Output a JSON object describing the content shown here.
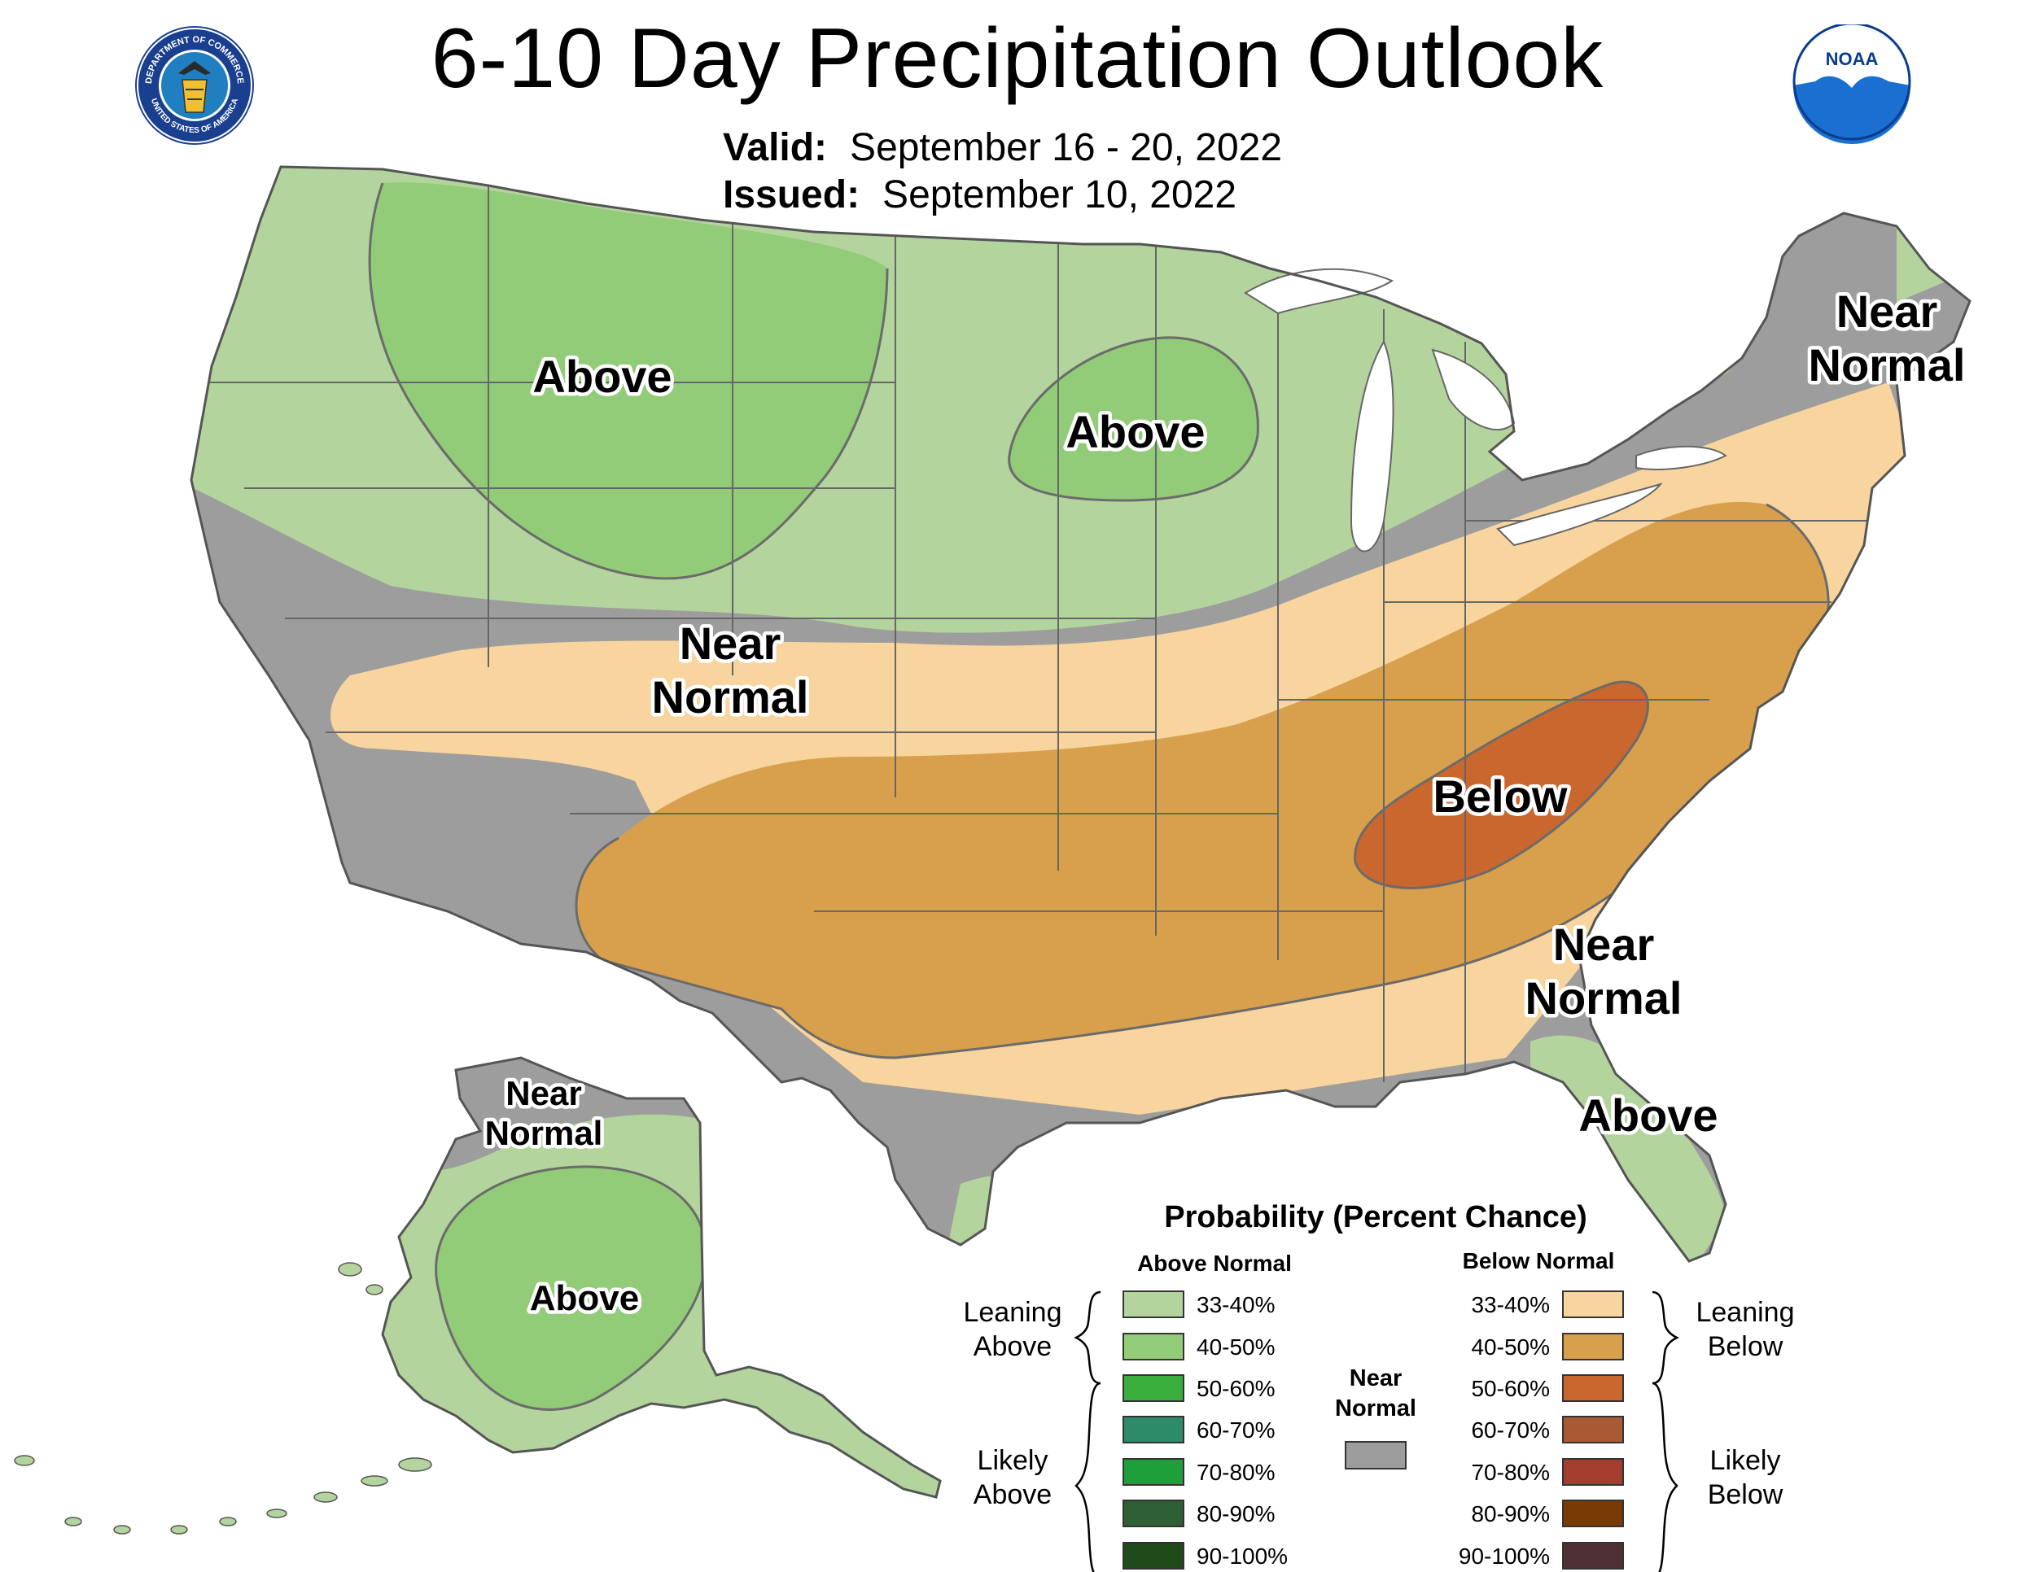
{
  "header": {
    "title": "6-10 Day Precipitation Outlook",
    "valid_label": "Valid:",
    "valid_value": "September 16 - 20, 2022",
    "issued_label": "Issued:",
    "issued_value": "September 10, 2022"
  },
  "logos": {
    "commerce_seal_text_top": "DEPARTMENT OF COMMERCE",
    "commerce_seal_text_bottom": "UNITED STATES OF AMERICA",
    "noaa_text": "NOAA"
  },
  "colors": {
    "above_33_40": "#b4d49e",
    "above_40_50": "#92cc78",
    "above_50_60": "#3aaf3e",
    "above_60_70": "#2e8b6a",
    "above_70_80": "#1e9f3a",
    "above_80_90": "#2f5f34",
    "above_90_100": "#1f4a1a",
    "below_33_40": "#f8d49e",
    "below_40_50": "#d8a04c",
    "below_50_60": "#c9672e",
    "below_60_70": "#a85a34",
    "below_70_80": "#a33e2e",
    "below_80_90": "#7a3a06",
    "below_90_100": "#4f3034",
    "near_normal": "#9d9d9d",
    "borders": "#666666"
  },
  "map_labels": {
    "conus_above_west": "Above",
    "conus_above_upper_midwest": "Above",
    "conus_near_normal_west_line1": "Near",
    "conus_near_normal_west_line2": "Normal",
    "conus_below": "Below",
    "conus_near_normal_northeast_line1": "Near",
    "conus_near_normal_northeast_line2": "Normal",
    "conus_near_normal_southeast_line1": "Near",
    "conus_near_normal_southeast_line2": "Normal",
    "conus_above_florida": "Above",
    "alaska_near_normal_line1": "Near",
    "alaska_near_normal_line2": "Normal",
    "alaska_above": "Above"
  },
  "legend": {
    "title": "Probability (Percent Chance)",
    "above_header": "Above Normal",
    "below_header": "Below Normal",
    "leaning_above_line1": "Leaning",
    "leaning_above_line2": "Above",
    "likely_above_line1": "Likely",
    "likely_above_line2": "Above",
    "leaning_below_line1": "Leaning",
    "leaning_below_line2": "Below",
    "likely_below_line1": "Likely",
    "likely_below_line2": "Below",
    "near_normal_line1": "Near",
    "near_normal_line2": "Normal",
    "above_items": [
      "33-40%",
      "40-50%",
      "50-60%",
      "60-70%",
      "70-80%",
      "80-90%",
      "90-100%"
    ],
    "below_items": [
      "33-40%",
      "40-50%",
      "50-60%",
      "60-70%",
      "70-80%",
      "80-90%",
      "90-100%"
    ]
  }
}
